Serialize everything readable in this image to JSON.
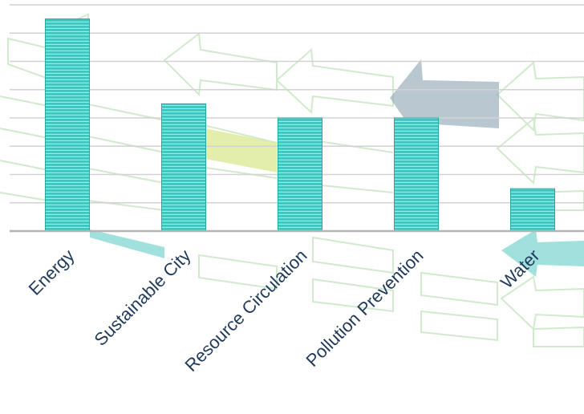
{
  "chart_data": {
    "type": "bar",
    "categories": [
      "Energy",
      "Sustainable City",
      "Resource Circulation",
      "Pollution Prevention",
      "Water"
    ],
    "values": [
      7.5,
      4.5,
      4.0,
      4.0,
      1.5
    ],
    "ylim": [
      0,
      8
    ],
    "grid": true,
    "legend": "none",
    "title": "",
    "xlabel": "",
    "ylabel": ""
  },
  "colors": {
    "bar": "#3fc4c0",
    "bar_stripe": "#ffffff",
    "bar_edge": "#2aa6a3",
    "grid": "#d2d2d2",
    "axis": "#b4b4b4",
    "label": "#1f3a5a",
    "deco_outline": "#c9e6c4",
    "deco_gray": "#93a9b9",
    "deco_yellow": "#d9e88e",
    "deco_teal": "#8fdcd8"
  },
  "background_icons": [
    "left-arrow-outline-icon",
    "gray-arrow-icon",
    "teal-arrow-icon",
    "yellow-band-icon"
  ]
}
